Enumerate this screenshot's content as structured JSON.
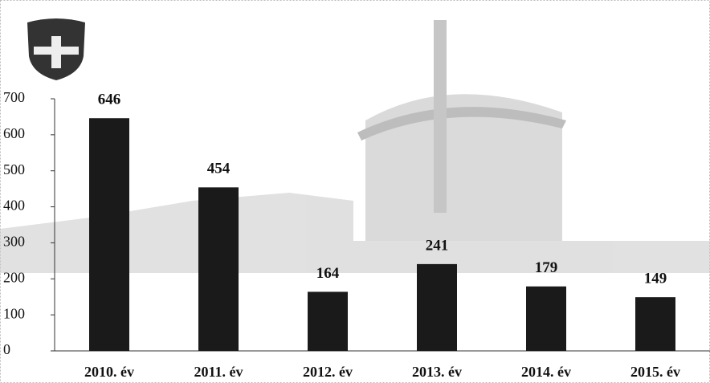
{
  "chart_data": {
    "type": "bar",
    "categories": [
      "2010. év",
      "2011. év",
      "2012. év",
      "2013. év",
      "2014. év",
      "2015. év"
    ],
    "values": [
      646,
      454,
      164,
      241,
      179,
      149
    ],
    "color": "#1a1a1a",
    "ylim": [
      0,
      700
    ],
    "yticks": [
      0,
      100,
      200,
      300,
      400,
      500,
      600,
      700
    ]
  }
}
